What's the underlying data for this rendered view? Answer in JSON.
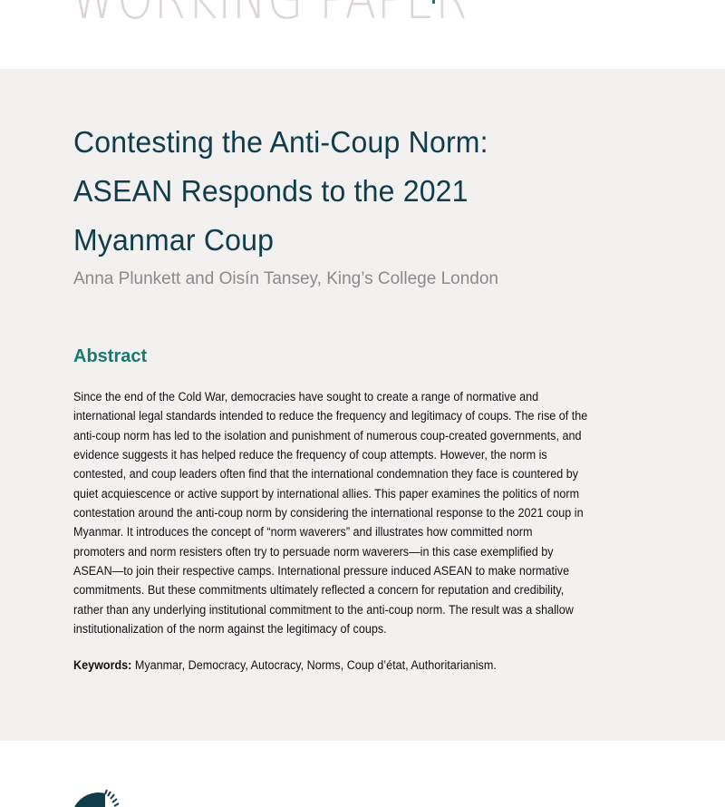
{
  "header": {
    "label": "WORKING PAPER"
  },
  "colors": {
    "title": "#0f3d4b",
    "accent": "#177a6d",
    "band": "#f3f0f0",
    "author": "#8a8a8a",
    "logo": "#0f3d4b"
  },
  "title_lines": [
    "Contesting the Anti-Coup Norm:",
    "ASEAN Responds to the 2021",
    "Myanmar Coup"
  ],
  "authors": "Anna Plunkett and Oisín Tansey, King’s College London",
  "abstract": {
    "heading": "Abstract",
    "lines": [
      "Since the end of the Cold War, democracies have sought to create a range of normative and",
      "international legal standards intended to reduce the frequency and legitimacy of coups. The rise of the",
      "anti-coup norm has led to the isolation and punishment of numerous coup-created governments, and",
      "evidence suggests it has helped reduce the frequency of coup attempts. However, the norm is",
      "contested, and coup leaders often find that the international condemnation they face is countered by",
      "quiet acquiescence or active support by international allies. This paper examines the politics of norm",
      "contestation around the anti-coup norm by considering the international response to the 2021 coup in",
      "Myanmar. It introduces the concept of “norm waverers” and illustrates how committed norm",
      "promoters and norm resisters often try to persuade norm waverers—in this case exemplified by",
      "ASEAN—to join their respective camps. International pressure induced ASEAN to make normative",
      "commitments. But these commitments ultimately reflected a concern for reputation and credibility,",
      "rather than any underlying institutional commitment to the anti-coup norm. The result was a shallow",
      "institutionalization of the norm against the legitimacy of coups."
    ]
  },
  "keywords": {
    "label": "Keywords:",
    "value": " Myanmar, Democracy, Autocracy, Norms, Coup d’état, Authoritarianism."
  },
  "logo": {
    "icon": "sunburst-logo-icon"
  }
}
